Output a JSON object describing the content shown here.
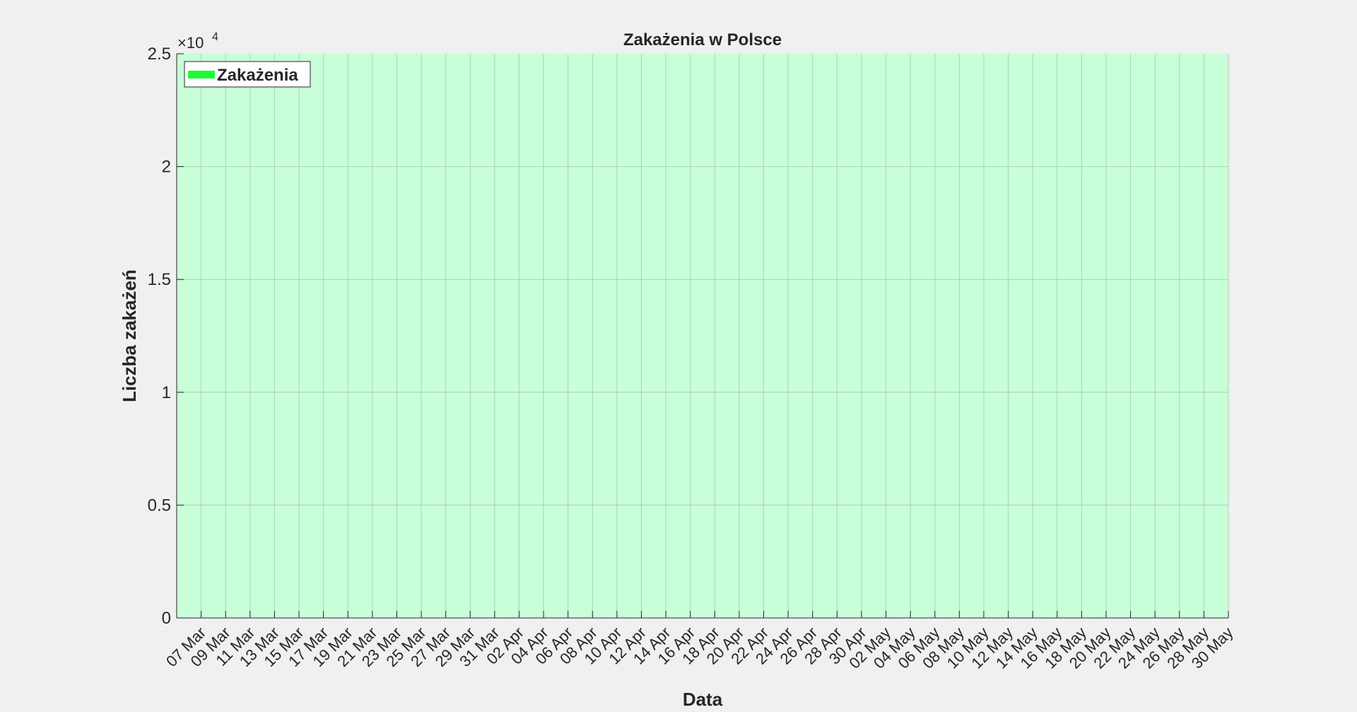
{
  "chart_data": {
    "type": "area",
    "title": "Zakażenia w Polsce",
    "xlabel": "Data",
    "ylabel": "Liczba zakażeń",
    "x_ticks": [
      "07 Mar",
      "09 Mar",
      "11 Mar",
      "13 Mar",
      "15 Mar",
      "17 Mar",
      "19 Mar",
      "21 Mar",
      "23 Mar",
      "25 Mar",
      "27 Mar",
      "29 Mar",
      "31 Mar",
      "02 Apr",
      "04 Apr",
      "06 Apr",
      "08 Apr",
      "10 Apr",
      "12 Apr",
      "14 Apr",
      "16 Apr",
      "18 Apr",
      "20 Apr",
      "22 Apr",
      "24 Apr",
      "26 Apr",
      "28 Apr",
      "30 Apr",
      "02 May",
      "04 May",
      "06 May",
      "08 May",
      "10 May",
      "12 May",
      "14 May",
      "16 May",
      "18 May",
      "20 May",
      "22 May",
      "24 May",
      "26 May",
      "28 May",
      "30 May"
    ],
    "y_ticks": [
      "0",
      "0.5",
      "1",
      "1.5",
      "2",
      "2.5"
    ],
    "y_tick_values": [
      0,
      5000,
      10000,
      15000,
      20000,
      25000
    ],
    "ylim": [
      0,
      25000
    ],
    "y_exponent_label": "×10",
    "y_exponent_power": "4",
    "grid": true,
    "legend_position": "top-left",
    "series": [
      {
        "name": "Zakażenia",
        "color": "#1aff33",
        "fill_color": "#c8ffd8"
      }
    ]
  }
}
